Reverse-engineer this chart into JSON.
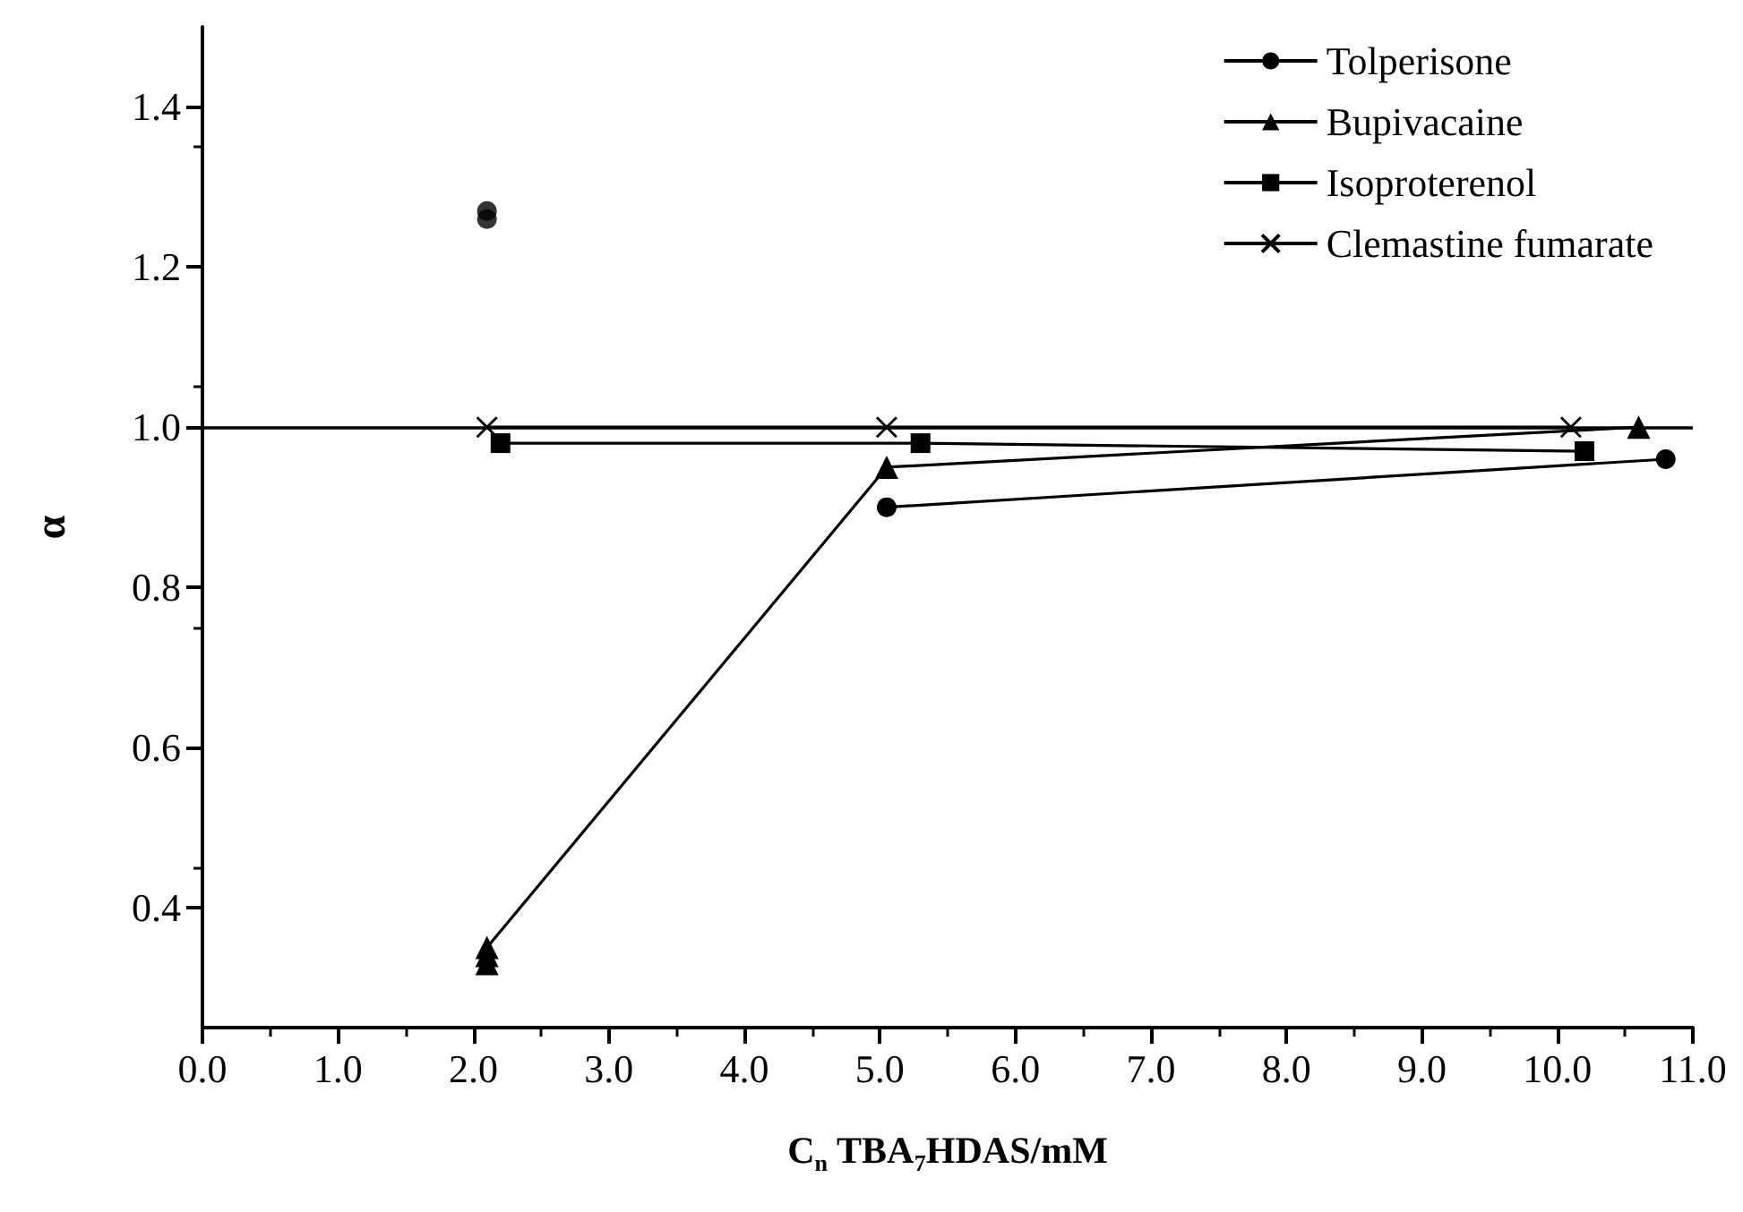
{
  "chart_data": {
    "type": "line",
    "xlabel": "C$_{n}$ TBA$_{7}$HDAS/mM",
    "ylabel": "α",
    "xlim": [
      0,
      11
    ],
    "ylim": [
      0.25,
      1.5
    ],
    "xticks": [
      {
        "value": 0,
        "label": "0.0"
      },
      {
        "value": 1,
        "label": "1.0"
      },
      {
        "value": 2,
        "label": "2.0"
      },
      {
        "value": 3,
        "label": "3.0"
      },
      {
        "value": 4,
        "label": "4.0"
      },
      {
        "value": 5,
        "label": "5.0"
      },
      {
        "value": 6,
        "label": "6.0"
      },
      {
        "value": 7,
        "label": "7.0"
      },
      {
        "value": 8,
        "label": "8.0"
      },
      {
        "value": 9,
        "label": "9.0"
      },
      {
        "value": 10,
        "label": "10.0"
      },
      {
        "value": 11,
        "label": "11.0"
      }
    ],
    "yticks": [
      0.4,
      0.6,
      0.8,
      {
        "value": 1,
        "label": "1.0"
      },
      1.2,
      1.4
    ],
    "series": [
      {
        "type": "scatter",
        "color": "#000000",
        "marker": "circle",
        "x": [
          2.1,
          2.1
        ],
        "values": [
          1.27,
          1.26
        ]
      },
      {
        "name": "Tolperisone",
        "color": "#000000",
        "marker": "circle",
        "x": [
          5.05,
          10.8
        ],
        "values": [
          0.9,
          0.96
        ]
      },
      {
        "name": "Bupivacaine",
        "color": "#000000",
        "marker": "triangle",
        "x": [
          2.1,
          2.1,
          2.1,
          5.05,
          10.6
        ],
        "values": [
          0.33,
          0.34,
          0.35,
          0.95,
          1.0
        ]
      },
      {
        "name": "Isoproterenol",
        "color": "#000000",
        "marker": "square",
        "x": [
          2.2,
          5.3,
          10.2
        ],
        "values": [
          0.98,
          0.98,
          0.97
        ]
      },
      {
        "name": "Clemastine fumarate",
        "color": "#000000",
        "marker": "cross",
        "x": [
          2.1,
          5.05,
          10.1
        ],
        "values": [
          1.0,
          1.0,
          1.0
        ]
      }
    ],
    "ref_lines": [
      {
        "axis": "y",
        "value": 1.0,
        "color": "#000000",
        "line_style": "solid"
      }
    ],
    "legend": "top right",
    "grid": false,
    "line_style": "solid"
  }
}
